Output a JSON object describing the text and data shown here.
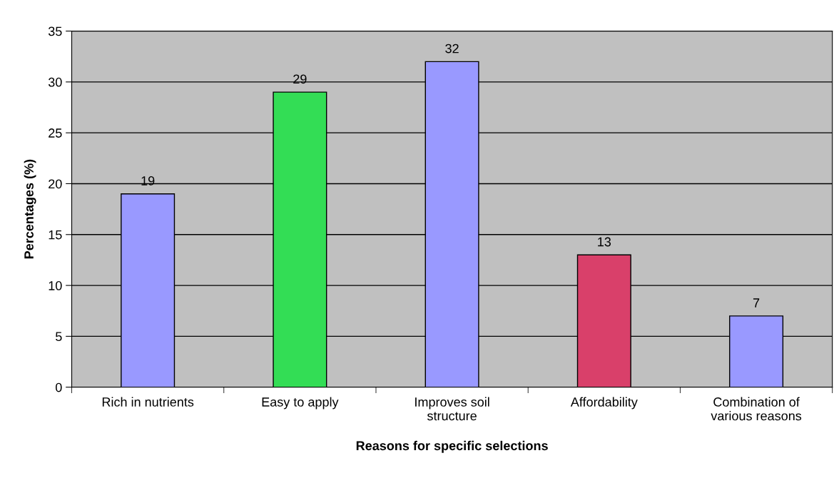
{
  "chart_data": {
    "type": "bar",
    "xlabel": "Reasons for specific selections",
    "ylabel": "Percentages (%)",
    "categories": [
      "Rich in nutrients",
      "Easy to apply",
      "Improves soil\nstructure",
      "Affordability",
      "Combination of\nvarious reasons"
    ],
    "values": [
      19,
      29,
      32,
      13,
      7
    ],
    "colors": [
      "#9999ff",
      "#33dd55",
      "#9999ff",
      "#d9406a",
      "#9999ff"
    ],
    "ylim": [
      0,
      35
    ],
    "yticks": [
      0,
      5,
      10,
      15,
      20,
      25,
      30,
      35
    ],
    "grid": "y",
    "data_labels": true,
    "legend": false
  }
}
